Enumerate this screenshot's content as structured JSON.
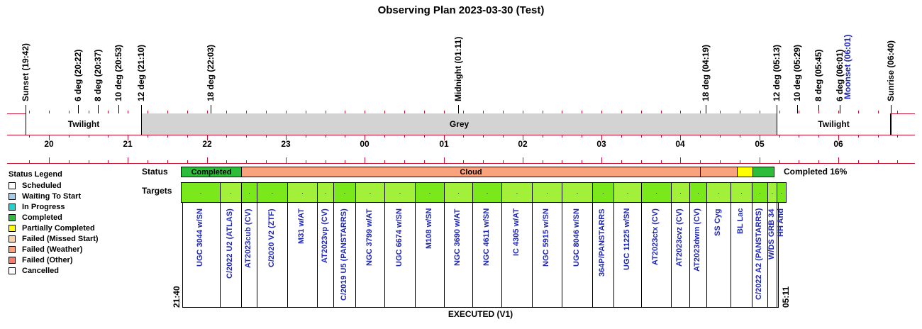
{
  "title": "Observing Plan 2023-03-30 (Test)",
  "colors": {
    "red_line": "#c8102e",
    "twilight_band": "#ffffff",
    "grey_band": "#d3d3d3",
    "completed": "#2ebd3b",
    "cloud": "#f9a27c",
    "partial": "#ffff00",
    "target_bright": "#7ae81a",
    "target_light": "#a3f03a",
    "moonset_text": "#1f27b8"
  },
  "events": [
    {
      "label": "Sunset (19:42)",
      "hour": 19.7,
      "color": "#000000"
    },
    {
      "label": "6 deg (20:22)",
      "hour": 20.367,
      "color": "#000000"
    },
    {
      "label": "8 deg (20:37)",
      "hour": 20.617,
      "color": "#000000"
    },
    {
      "label": "10 deg (20:53)",
      "hour": 20.883,
      "color": "#000000"
    },
    {
      "label": "12 deg (21:10)",
      "hour": 21.167,
      "color": "#000000"
    },
    {
      "label": "18 deg (22:03)",
      "hour": 22.05,
      "color": "#000000"
    },
    {
      "label": "Midnight (01:11)",
      "hour": 25.183,
      "color": "#000000"
    },
    {
      "label": "18 deg (04:19)",
      "hour": 28.317,
      "color": "#000000"
    },
    {
      "label": "12 deg (05:13)",
      "hour": 29.217,
      "color": "#000000"
    },
    {
      "label": "10 deg (05:29)",
      "hour": 29.483,
      "color": "#000000"
    },
    {
      "label": "8 deg (05:45)",
      "hour": 29.75,
      "color": "#000000"
    },
    {
      "label": "6 deg (06:01)",
      "hour": 30.017,
      "color": "#000000"
    },
    {
      "label": "Moonset (06:01)",
      "hour": 30.017,
      "color": "#1f27b8"
    },
    {
      "label": "Sunrise (06:40)",
      "hour": 30.667,
      "color": "#000000"
    }
  ],
  "bands": [
    {
      "label": "Twilight",
      "start": 19.7,
      "end": 21.167,
      "fill": "#ffffff"
    },
    {
      "label": "Grey",
      "start": 21.167,
      "end": 29.217,
      "fill": "#d3d3d3"
    },
    {
      "label": "Twilight",
      "start": 29.217,
      "end": 30.667,
      "fill": "#ffffff"
    }
  ],
  "hours": [
    {
      "label": "20",
      "hour": 20
    },
    {
      "label": "21",
      "hour": 21
    },
    {
      "label": "22",
      "hour": 22
    },
    {
      "label": "23",
      "hour": 23
    },
    {
      "label": "00",
      "hour": 24
    },
    {
      "label": "01",
      "hour": 25
    },
    {
      "label": "02",
      "hour": 26
    },
    {
      "label": "03",
      "hour": 27
    },
    {
      "label": "04",
      "hour": 28
    },
    {
      "label": "05",
      "hour": 29
    },
    {
      "label": "06",
      "hour": 30
    }
  ],
  "legend": {
    "title": "Status Legend",
    "items": [
      {
        "label": "Scheduled",
        "color": "#ffffff"
      },
      {
        "label": "Waiting To Start",
        "color": "#a7cde6"
      },
      {
        "label": "In Progress",
        "color": "#1fd3cf"
      },
      {
        "label": "Completed",
        "color": "#2ebd3b"
      },
      {
        "label": "Partially Completed",
        "color": "#ffff00"
      },
      {
        "label": "Failed (Missed Start)",
        "color": "#f8d2a8"
      },
      {
        "label": "Failed (Weather)",
        "color": "#f9a27c"
      },
      {
        "label": "Failed (Other)",
        "color": "#f37e6c"
      },
      {
        "label": "Cancelled",
        "color": "#ffffff"
      }
    ]
  },
  "status_row": {
    "label": "Status",
    "summary": "Completed 16%",
    "segments": [
      {
        "label": "Completed",
        "start": 21.667,
        "end": 22.433,
        "fill": "#2ebd3b"
      },
      {
        "label": "Cloud",
        "start": 22.433,
        "end": 28.25,
        "fill": "#f9a27c"
      },
      {
        "label": "",
        "start": 28.25,
        "end": 28.717,
        "fill": "#f9a27c"
      },
      {
        "label": "",
        "start": 28.717,
        "end": 28.917,
        "fill": "#ffff00"
      },
      {
        "label": "",
        "start": 28.917,
        "end": 29.183,
        "fill": "#2ebd3b"
      }
    ]
  },
  "targets_row": {
    "label": "Targets",
    "start_time": "21:40",
    "end_time": "05:11",
    "footer": "EXECUTED (V1)",
    "marker": "·",
    "items": [
      {
        "name": "UGC 3044 w/SN",
        "start": 21.667,
        "end": 22.167,
        "fill": "#7ae81a"
      },
      {
        "name": "C/2022 U2 (ATLAS)",
        "start": 22.167,
        "end": 22.433,
        "fill": "#a3f03a"
      },
      {
        "name": "AT2023cub (CV)",
        "start": 22.433,
        "end": 22.633,
        "fill": "#7ae81a"
      },
      {
        "name": "C/2020 V2 (ZTF)",
        "start": 22.633,
        "end": 23.017,
        "fill": "#7ae81a"
      },
      {
        "name": "M31 w/AT",
        "start": 23.017,
        "end": 23.4,
        "fill": "#a3f03a"
      },
      {
        "name": "AT2023vp (CV)",
        "start": 23.4,
        "end": 23.6,
        "fill": "#a3f03a"
      },
      {
        "name": "C/2019 U5 (PANSTARRS)",
        "start": 23.6,
        "end": 23.883,
        "fill": "#7ae81a"
      },
      {
        "name": "NGC 3799 w/AT",
        "start": 23.883,
        "end": 24.25,
        "fill": "#a3f03a"
      },
      {
        "name": "UGC 6674 w/SN",
        "start": 24.25,
        "end": 24.633,
        "fill": "#a3f03a"
      },
      {
        "name": "M108 w/SN",
        "start": 24.633,
        "end": 25.0,
        "fill": "#7ae81a"
      },
      {
        "name": "NGC 3690 w/AT",
        "start": 25.0,
        "end": 25.367,
        "fill": "#a3f03a"
      },
      {
        "name": "NGC 4611 w/SN",
        "start": 25.367,
        "end": 25.733,
        "fill": "#7ae81a"
      },
      {
        "name": "IC 4305 w/AT",
        "start": 25.733,
        "end": 26.117,
        "fill": "#a3f03a"
      },
      {
        "name": "NGC 5915 w/SN",
        "start": 26.117,
        "end": 26.5,
        "fill": "#a3f03a"
      },
      {
        "name": "UGC 8046 w/SN",
        "start": 26.5,
        "end": 26.883,
        "fill": "#a3f03a"
      },
      {
        "name": "364P/PANSTARRS",
        "start": 26.883,
        "end": 27.15,
        "fill": "#7ae81a"
      },
      {
        "name": "UGC 11225 w/SN",
        "start": 27.15,
        "end": 27.5,
        "fill": "#a3f03a"
      },
      {
        "name": "AT2023ctx (CV)",
        "start": 27.5,
        "end": 27.883,
        "fill": "#7ae81a"
      },
      {
        "name": "AT2023cvz (CV)",
        "start": 27.883,
        "end": 28.117,
        "fill": "#a3f03a"
      },
      {
        "name": "AT2023dwm (CV)",
        "start": 28.117,
        "end": 28.333,
        "fill": "#7ae81a"
      },
      {
        "name": "SS Cyg",
        "start": 28.333,
        "end": 28.633,
        "fill": "#a3f03a"
      },
      {
        "name": "BL Lac",
        "start": 28.633,
        "end": 28.9,
        "fill": "#a3f03a"
      },
      {
        "name": "C/2022 A2 (PANSTARRS)",
        "start": 28.9,
        "end": 29.1,
        "fill": "#7ae81a"
      },
      {
        "name": "W/DS GRB 34",
        "start": 29.1,
        "end": 29.217,
        "fill": "#a3f03a"
      },
      {
        "name": "HH And",
        "start": 29.217,
        "end": 29.333,
        "fill": "#7ae81a"
      }
    ]
  }
}
